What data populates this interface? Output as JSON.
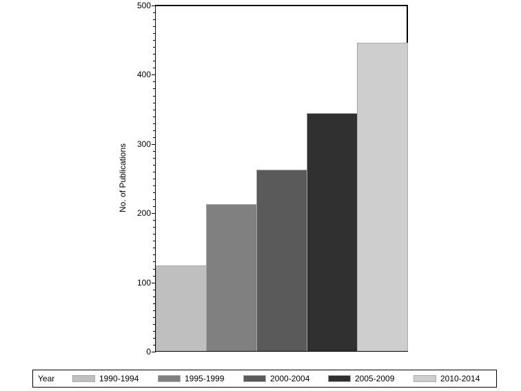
{
  "chart_data": {
    "type": "bar",
    "title": "",
    "xlabel": "",
    "ylabel": "No. of Publications",
    "ylim": [
      0,
      500
    ],
    "yticks": [
      0,
      100,
      200,
      300,
      400,
      500
    ],
    "grid": false,
    "legend_position": "bottom",
    "legend_title": "Year",
    "categories": [
      "1990-1994",
      "1995-1999",
      "2000-2004",
      "2005-2009",
      "2010-2014"
    ],
    "values": [
      124,
      212,
      262,
      344,
      445
    ],
    "colors": [
      "#bfbfbf",
      "#808080",
      "#5a5a5a",
      "#303030",
      "#cecece"
    ]
  },
  "ytick_labels": [
    "0",
    "100",
    "200",
    "300",
    "400",
    "500"
  ],
  "legend": {
    "title": "Year",
    "items": [
      {
        "label": "1990-1994",
        "color": "#bfbfbf"
      },
      {
        "label": "1995-1999",
        "color": "#808080"
      },
      {
        "label": "2000-2004",
        "color": "#5a5a5a"
      },
      {
        "label": "2005-2009",
        "color": "#303030"
      },
      {
        "label": "2010-2014",
        "color": "#cecece"
      }
    ]
  }
}
